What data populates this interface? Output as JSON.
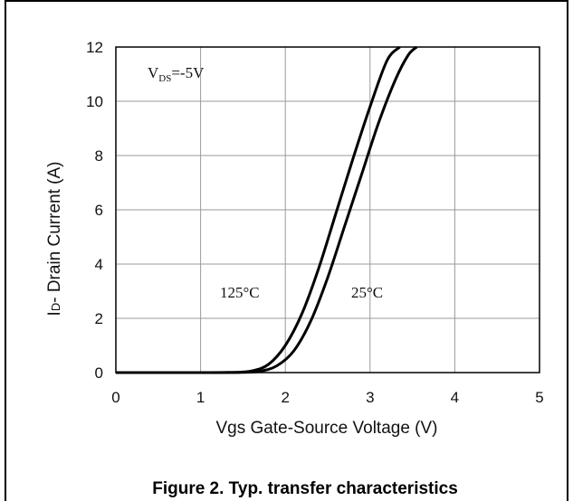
{
  "chart_data": {
    "type": "line",
    "title": "",
    "caption": "Figure 2. Typ. transfer characteristics",
    "xlabel": "Vgs Gate-Source Voltage (V)",
    "ylabel": "ID- Drain Current (A)",
    "ylabel_parts": {
      "main": "I",
      "sub": "D",
      "rest": "- Drain Current (A)"
    },
    "xlim": [
      0,
      5
    ],
    "ylim": [
      0,
      12
    ],
    "xticks": [
      "0",
      "1",
      "2",
      "3",
      "4",
      "5"
    ],
    "yticks": [
      "0",
      "2",
      "4",
      "6",
      "8",
      "10",
      "12"
    ],
    "grid": true,
    "annotations": {
      "condition": {
        "main": "V",
        "sub": "DS",
        "rest": "=-5V"
      },
      "t125": "125°C",
      "t25": "25°C"
    },
    "series": [
      {
        "name": "125°C",
        "x": [
          0,
          1.0,
          1.4,
          1.6,
          1.8,
          2.0,
          2.2,
          2.4,
          2.6,
          2.8,
          3.0,
          3.2,
          3.35
        ],
        "y": [
          0,
          0,
          0.01,
          0.06,
          0.3,
          1.0,
          2.2,
          3.9,
          5.9,
          7.9,
          9.8,
          11.5,
          12.0
        ]
      },
      {
        "name": "25°C",
        "x": [
          0,
          1.0,
          1.5,
          1.7,
          1.9,
          2.1,
          2.3,
          2.5,
          2.7,
          2.9,
          3.1,
          3.3,
          3.45,
          3.55
        ],
        "y": [
          0,
          0,
          0.01,
          0.05,
          0.25,
          0.8,
          1.9,
          3.5,
          5.4,
          7.3,
          9.2,
          10.8,
          11.7,
          12.0
        ]
      }
    ]
  }
}
